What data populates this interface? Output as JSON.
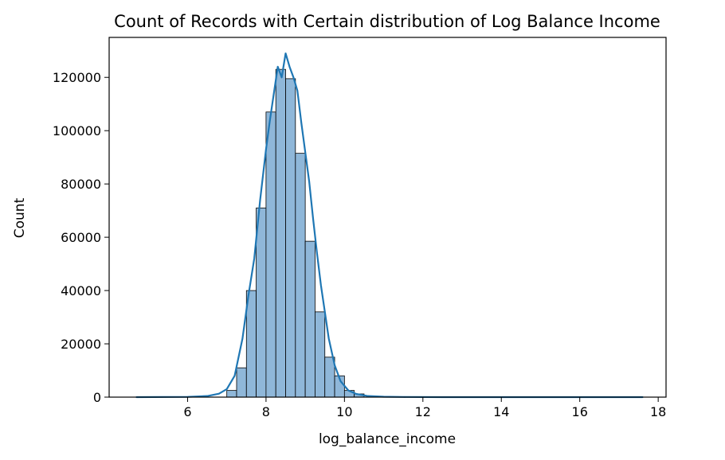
{
  "chart_data": {
    "type": "bar",
    "title": "Count of Records with Certain distribution of Log Balance Income",
    "xlabel": "log_balance_income",
    "ylabel": "Count",
    "xlim": [
      4.0,
      18.2
    ],
    "ylim": [
      0,
      135000
    ],
    "x_ticks": [
      {
        "value": 6,
        "label": "6"
      },
      {
        "value": 8,
        "label": "8"
      },
      {
        "value": 10,
        "label": "10"
      },
      {
        "value": 12,
        "label": "12"
      },
      {
        "value": 14,
        "label": "14"
      },
      {
        "value": 16,
        "label": "16"
      },
      {
        "value": 18,
        "label": "18"
      }
    ],
    "y_ticks": [
      {
        "value": 0,
        "label": "0"
      },
      {
        "value": 20000,
        "label": "20000"
      },
      {
        "value": 40000,
        "label": "40000"
      },
      {
        "value": 60000,
        "label": "60000"
      },
      {
        "value": 80000,
        "label": "80000"
      },
      {
        "value": 100000,
        "label": "100000"
      },
      {
        "value": 120000,
        "label": "120000"
      }
    ],
    "grid": false,
    "colors": {
      "bar_fill": "#8fb7d9",
      "bar_edge": "#000000",
      "kde_line": "#1f77b4"
    },
    "bins": [
      {
        "start": 7.0,
        "end": 7.25,
        "count": 2500
      },
      {
        "start": 7.25,
        "end": 7.5,
        "count": 11000
      },
      {
        "start": 7.5,
        "end": 7.75,
        "count": 40000
      },
      {
        "start": 7.75,
        "end": 8.0,
        "count": 71000
      },
      {
        "start": 8.0,
        "end": 8.25,
        "count": 107000
      },
      {
        "start": 8.25,
        "end": 8.5,
        "count": 123000
      },
      {
        "start": 8.5,
        "end": 8.75,
        "count": 119500
      },
      {
        "start": 8.75,
        "end": 9.0,
        "count": 91500
      },
      {
        "start": 9.0,
        "end": 9.25,
        "count": 58500
      },
      {
        "start": 9.25,
        "end": 9.5,
        "count": 32000
      },
      {
        "start": 9.5,
        "end": 9.75,
        "count": 15000
      },
      {
        "start": 9.75,
        "end": 10.0,
        "count": 8000
      },
      {
        "start": 10.0,
        "end": 10.25,
        "count": 2500
      },
      {
        "start": 10.25,
        "end": 10.5,
        "count": 1200
      }
    ],
    "kde": {
      "x": [
        4.7,
        6.0,
        6.5,
        6.8,
        7.0,
        7.2,
        7.4,
        7.55,
        7.7,
        7.85,
        8.0,
        8.1,
        8.2,
        8.3,
        8.4,
        8.5,
        8.6,
        8.7,
        8.8,
        8.9,
        9.0,
        9.1,
        9.2,
        9.3,
        9.4,
        9.5,
        9.6,
        9.75,
        9.9,
        10.1,
        10.3,
        10.6,
        11.0,
        11.5,
        12.5,
        14.0,
        16.0,
        17.6
      ],
      "y": [
        0,
        100,
        400,
        1300,
        3000,
        8000,
        22000,
        38000,
        52000,
        74000,
        93000,
        104000,
        114000,
        124000,
        120000,
        129000,
        124000,
        120000,
        115000,
        103000,
        92000,
        81000,
        67000,
        54000,
        42000,
        32000,
        22000,
        12000,
        6000,
        2500,
        1200,
        400,
        150,
        50,
        10,
        0,
        0,
        0
      ]
    }
  }
}
